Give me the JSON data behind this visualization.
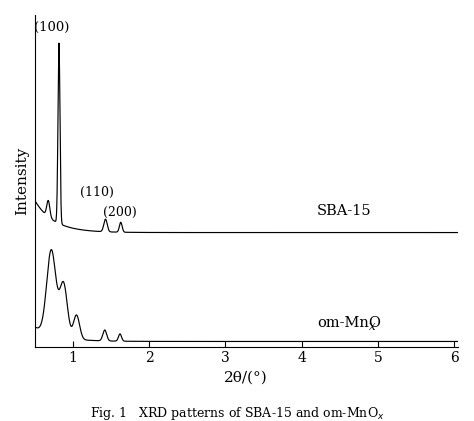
{
  "xlabel": "2θ/(°)",
  "ylabel": "Intensity",
  "xlim": [
    0.5,
    6.05
  ],
  "xticks": [
    1,
    2,
    3,
    4,
    5,
    6
  ],
  "label_sba": "SBA-15",
  "label_om": "om-MnO",
  "label_om_sub": "x",
  "annotation_100": "(100)",
  "annotation_110": "(110)",
  "annotation_200": "(200)",
  "background_color": "#ffffff",
  "line_color": "#000000",
  "figcaption_bold": "Fig. 1",
  "figcaption_normal": "   XRD patterns of SBA-15 and om-MnO"
}
